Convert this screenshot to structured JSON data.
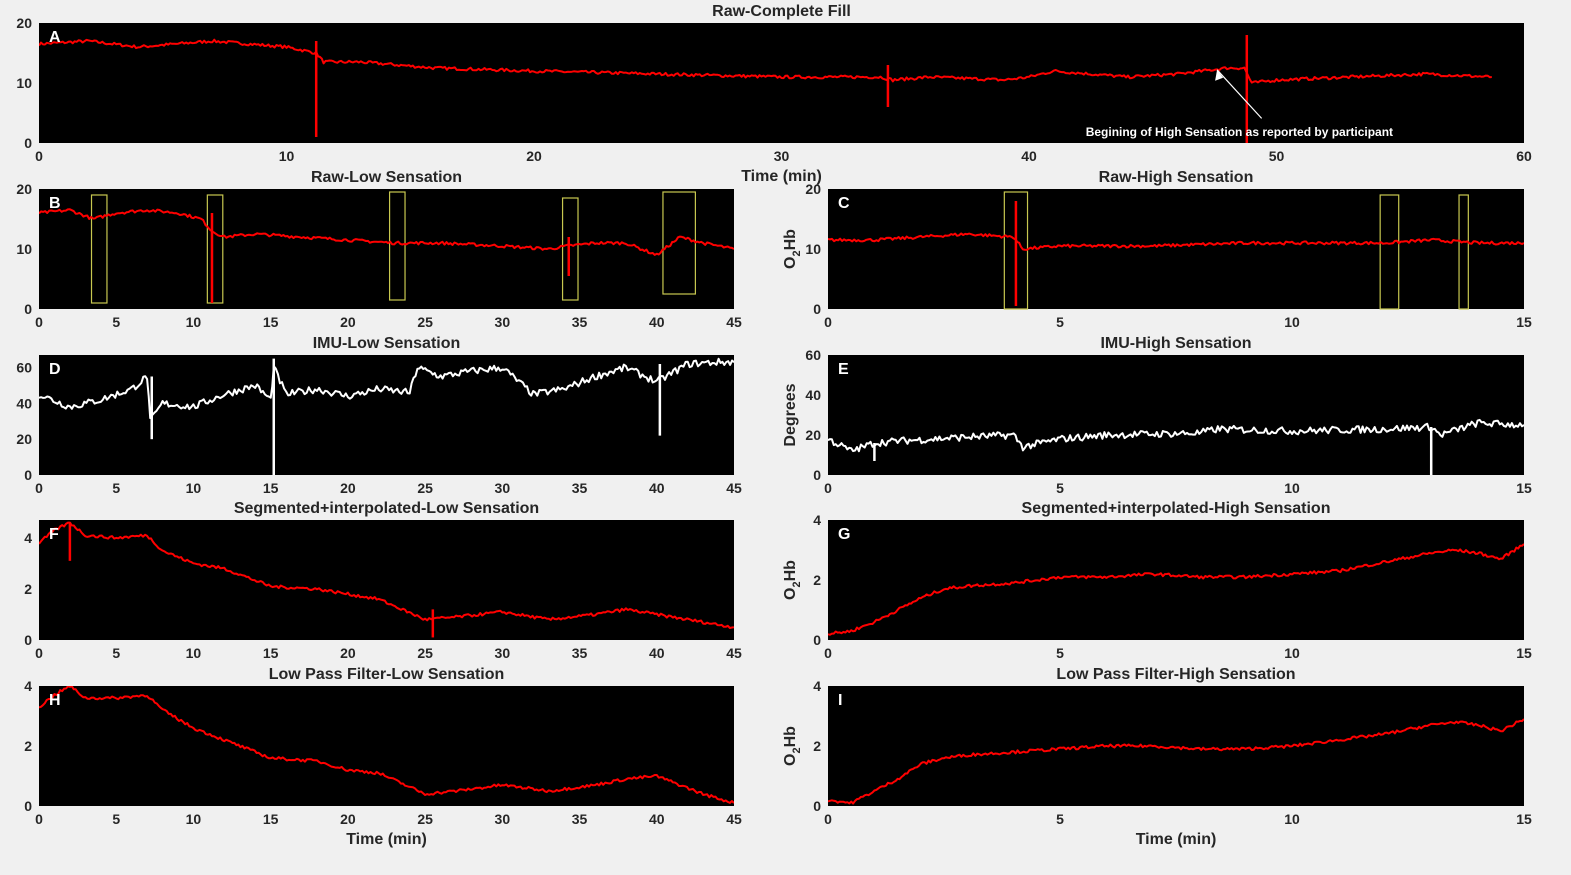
{
  "colors": {
    "background": "#f0f0f0",
    "axes_bg": "#000000",
    "o2hb_line": "#ff0000",
    "imu_line": "#ffffff",
    "roi_box": "#c8c850",
    "text": "#262626"
  },
  "chart_data": [
    {
      "id": "A",
      "type": "line",
      "title": "Raw-Complete Fill",
      "panel_label": "A",
      "xlabel": "Time (min)",
      "ylabel": "O2Hb",
      "ylabel_parts": [
        "O",
        "2",
        "Hb"
      ],
      "show_ylabel": false,
      "xlim": [
        0,
        60
      ],
      "ylim": [
        0,
        20
      ],
      "xticks": [
        0,
        10,
        20,
        30,
        40,
        50,
        60
      ],
      "yticks": [
        0,
        10,
        20
      ],
      "color": "#ff0000",
      "series": [
        {
          "x": [
            0,
            2,
            4,
            7,
            10,
            11.2,
            11.5,
            13,
            16,
            20,
            25,
            30,
            34,
            34.5,
            36,
            39,
            40,
            41,
            44,
            46,
            48,
            48.7,
            49,
            50,
            53,
            56,
            58.7
          ],
          "y": [
            16.5,
            17,
            16,
            17,
            16,
            15,
            13.5,
            13.5,
            12.5,
            12,
            11.5,
            11,
            11,
            10.5,
            11,
            10.5,
            11,
            12,
            11,
            11.5,
            12.5,
            12.5,
            10,
            10.5,
            11,
            11.5,
            11
          ]
        }
      ],
      "spikes": [
        {
          "x": 11.2,
          "ymin": 1,
          "ymax": 17
        },
        {
          "x": 48.8,
          "ymin": 0,
          "ymax": 18
        },
        {
          "x": 34.3,
          "ymin": 6,
          "ymax": 13
        }
      ],
      "annotations": [
        {
          "text": "Begining of High Sensation as reported by participant",
          "x_text": 48.5,
          "y_text": 1.8,
          "x_arrow": 47.6,
          "y_arrow": 12.2
        }
      ]
    },
    {
      "id": "B",
      "type": "line",
      "title": "Raw-Low Sensation",
      "panel_label": "B",
      "xlabel": "",
      "ylabel": "O2Hb",
      "ylabel_parts": [
        "O",
        "2",
        "Hb"
      ],
      "show_ylabel": false,
      "xlim": [
        0,
        45
      ],
      "ylim": [
        0,
        20
      ],
      "xticks": [
        0,
        5,
        10,
        15,
        20,
        25,
        30,
        35,
        40,
        45
      ],
      "yticks": [
        0,
        10,
        20
      ],
      "color": "#ff0000",
      "series": [
        {
          "x": [
            0,
            2,
            3.5,
            5,
            7,
            9,
            10.5,
            11.2,
            12,
            14,
            17,
            20,
            23,
            26,
            30,
            33,
            34.2,
            36,
            38,
            40,
            41.5,
            43,
            45
          ],
          "y": [
            16,
            16.5,
            15,
            16,
            16.5,
            16,
            15,
            13,
            12,
            12.5,
            12,
            11.5,
            11,
            11,
            10.5,
            10,
            10.5,
            11,
            11,
            9,
            12,
            11,
            10
          ]
        }
      ],
      "spikes": [
        {
          "x": 11.2,
          "ymin": 1,
          "ymax": 16
        },
        {
          "x": 34.3,
          "ymin": 5.5,
          "ymax": 12
        }
      ],
      "rois": [
        {
          "x0": 3.4,
          "x1": 4.4,
          "y0": 1,
          "y1": 19
        },
        {
          "x0": 10.9,
          "x1": 11.9,
          "y0": 1,
          "y1": 19
        },
        {
          "x0": 22.7,
          "x1": 23.7,
          "y0": 1.5,
          "y1": 19.5
        },
        {
          "x0": 33.9,
          "x1": 34.9,
          "y0": 1.5,
          "y1": 18.5
        },
        {
          "x0": 40.4,
          "x1": 42.5,
          "y0": 2.5,
          "y1": 19.5
        }
      ]
    },
    {
      "id": "C",
      "type": "line",
      "title": "Raw-High Sensation",
      "panel_label": "C",
      "xlabel": "",
      "ylabel": "O2Hb",
      "ylabel_parts": [
        "O",
        "2",
        "Hb"
      ],
      "show_ylabel": true,
      "xlim": [
        0,
        15
      ],
      "ylim": [
        0,
        20
      ],
      "xticks": [
        0,
        5,
        10,
        15
      ],
      "yticks": [
        0,
        10,
        20
      ],
      "color": "#ff0000",
      "series": [
        {
          "x": [
            0,
            1,
            2,
            3,
            4,
            4.2,
            5,
            7,
            9,
            11,
            12,
            13,
            14,
            15
          ],
          "y": [
            11.5,
            11.5,
            12,
            12.5,
            12,
            10,
            10.5,
            10.5,
            11,
            11,
            11,
            11.5,
            11,
            11
          ]
        }
      ],
      "spikes": [
        {
          "x": 4.05,
          "ymin": 0.5,
          "ymax": 18
        }
      ],
      "rois": [
        {
          "x0": 3.8,
          "x1": 4.3,
          "y0": 0,
          "y1": 19.5
        },
        {
          "x0": 11.9,
          "x1": 12.3,
          "y0": 0,
          "y1": 19
        },
        {
          "x0": 13.6,
          "x1": 13.8,
          "y0": 0,
          "y1": 19
        }
      ]
    },
    {
      "id": "D",
      "type": "line",
      "title": "IMU-Low Sensation",
      "panel_label": "D",
      "xlabel": "",
      "ylabel": "Degrees",
      "show_ylabel": false,
      "xlim": [
        0,
        45
      ],
      "ylim": [
        0,
        67
      ],
      "xticks": [
        0,
        5,
        10,
        15,
        20,
        25,
        30,
        35,
        40,
        45
      ],
      "yticks": [
        0,
        20,
        40,
        60
      ],
      "color": "#ffffff",
      "series": [
        {
          "x": [
            0,
            2,
            4,
            6,
            7,
            7.2,
            8,
            10,
            12,
            14,
            15,
            15.2,
            16,
            18,
            20,
            22,
            24,
            24.5,
            26,
            28,
            30,
            32,
            34,
            36,
            38,
            40,
            42,
            44,
            45
          ],
          "y": [
            45,
            38,
            42,
            48,
            55,
            30,
            40,
            38,
            45,
            50,
            42,
            60,
            45,
            48,
            44,
            48,
            46,
            60,
            55,
            58,
            60,
            45,
            48,
            55,
            60,
            52,
            62,
            63,
            63
          ]
        }
      ],
      "spikes": [
        {
          "x": 15.2,
          "ymin": 0,
          "ymax": 65
        },
        {
          "x": 7.3,
          "ymin": 20,
          "ymax": 55
        },
        {
          "x": 40.2,
          "ymin": 22,
          "ymax": 62
        }
      ]
    },
    {
      "id": "E",
      "type": "line",
      "title": "IMU-High Sensation",
      "panel_label": "E",
      "xlabel": "",
      "ylabel": "Degrees",
      "show_ylabel": true,
      "xlim": [
        0,
        15
      ],
      "ylim": [
        0,
        60
      ],
      "xticks": [
        0,
        5,
        10,
        15
      ],
      "yticks": [
        0,
        20,
        40,
        60
      ],
      "color": "#ffffff",
      "series": [
        {
          "x": [
            0,
            0.5,
            1,
            1.5,
            3,
            4,
            4.2,
            5,
            6,
            8,
            8.4,
            10,
            12,
            13,
            13.2,
            14,
            15
          ],
          "y": [
            18,
            12,
            16,
            17,
            19,
            20,
            14,
            18,
            20,
            21,
            23,
            22,
            23,
            24,
            20,
            26,
            25
          ]
        }
      ],
      "spikes": [
        {
          "x": 13.0,
          "ymin": 0,
          "ymax": 24
        },
        {
          "x": 1.0,
          "ymin": 7,
          "ymax": 16
        }
      ]
    },
    {
      "id": "F",
      "type": "line",
      "title": "Segmented+interpolated-Low Sensation",
      "panel_label": "F",
      "xlabel": "",
      "ylabel": "O2Hb",
      "ylabel_parts": [
        "O",
        "2",
        "Hb"
      ],
      "show_ylabel": false,
      "xlim": [
        0,
        45
      ],
      "ylim": [
        0,
        4.7
      ],
      "xticks": [
        0,
        5,
        10,
        15,
        20,
        25,
        30,
        35,
        40,
        45
      ],
      "yticks": [
        0,
        2,
        4
      ],
      "color": "#ff0000",
      "series": [
        {
          "x": [
            0,
            1,
            2,
            3,
            5,
            7,
            8,
            10,
            12,
            15,
            18,
            20,
            22,
            25,
            27,
            30,
            33,
            36,
            38,
            40,
            43,
            45
          ],
          "y": [
            3.8,
            4.3,
            4.6,
            4.1,
            4.0,
            4.1,
            3.5,
            3.0,
            2.8,
            2.1,
            2.0,
            1.8,
            1.6,
            0.8,
            0.9,
            1.1,
            0.8,
            1.0,
            1.2,
            1.0,
            0.7,
            0.5
          ]
        }
      ],
      "spikes": [
        {
          "x": 2.0,
          "ymin": 3.1,
          "ymax": 4.6
        },
        {
          "x": 25.5,
          "ymin": 0.1,
          "ymax": 1.2
        }
      ]
    },
    {
      "id": "G",
      "type": "line",
      "title": "Segmented+interpolated-High Sensation",
      "panel_label": "G",
      "xlabel": "",
      "ylabel": "O2Hb",
      "ylabel_parts": [
        "O",
        "2",
        "Hb"
      ],
      "show_ylabel": true,
      "xlim": [
        0,
        15
      ],
      "ylim": [
        0,
        4
      ],
      "xticks": [
        0,
        5,
        10,
        15
      ],
      "yticks": [
        0,
        2,
        4
      ],
      "color": "#ff0000",
      "series": [
        {
          "x": [
            0,
            0.5,
            1,
            1.5,
            2,
            2.5,
            3,
            4,
            5,
            6,
            7,
            8,
            9,
            10,
            11,
            12,
            13,
            13.5,
            14,
            14.5,
            15
          ],
          "y": [
            0.2,
            0.3,
            0.6,
            1.0,
            1.4,
            1.7,
            1.8,
            1.9,
            2.1,
            2.1,
            2.2,
            2.1,
            2.1,
            2.2,
            2.3,
            2.6,
            2.9,
            3.0,
            2.9,
            2.7,
            3.2
          ]
        }
      ]
    },
    {
      "id": "H",
      "type": "line",
      "title": "Low Pass Filter-Low Sensation",
      "panel_label": "H",
      "xlabel": "Time (min)",
      "ylabel": "O2Hb",
      "ylabel_parts": [
        "O",
        "2",
        "Hb"
      ],
      "show_ylabel": false,
      "xlim": [
        0,
        45
      ],
      "ylim": [
        0,
        4
      ],
      "xticks": [
        0,
        5,
        10,
        15,
        20,
        25,
        30,
        35,
        40,
        45
      ],
      "yticks": [
        0,
        2,
        4
      ],
      "color": "#ff0000",
      "series": [
        {
          "x": [
            0,
            1,
            2,
            3,
            5,
            7,
            8,
            10,
            12,
            15,
            18,
            20,
            22,
            25,
            27,
            30,
            33,
            36,
            38,
            40,
            43,
            45
          ],
          "y": [
            3.3,
            3.7,
            4.0,
            3.6,
            3.6,
            3.7,
            3.2,
            2.6,
            2.2,
            1.6,
            1.5,
            1.2,
            1.1,
            0.4,
            0.5,
            0.7,
            0.5,
            0.7,
            0.9,
            1.0,
            0.4,
            0.1
          ]
        }
      ]
    },
    {
      "id": "I",
      "type": "line",
      "title": "Low Pass Filter-High Sensation",
      "panel_label": "I",
      "xlabel": "Time (min)",
      "ylabel": "O2Hb",
      "ylabel_parts": [
        "O",
        "2",
        "Hb"
      ],
      "show_ylabel": true,
      "xlim": [
        0,
        15
      ],
      "ylim": [
        0,
        4
      ],
      "xticks": [
        0,
        5,
        10,
        15
      ],
      "yticks": [
        0,
        2,
        4
      ],
      "color": "#ff0000",
      "series": [
        {
          "x": [
            0,
            0.5,
            1,
            1.5,
            2,
            2.5,
            3,
            4,
            5,
            6,
            7,
            8,
            9,
            10,
            11,
            12,
            13,
            13.5,
            14,
            14.5,
            15
          ],
          "y": [
            0.2,
            0.1,
            0.5,
            0.9,
            1.4,
            1.6,
            1.7,
            1.8,
            1.9,
            2.0,
            2.0,
            1.9,
            1.9,
            2.0,
            2.2,
            2.4,
            2.7,
            2.8,
            2.7,
            2.5,
            2.9
          ]
        }
      ]
    }
  ]
}
